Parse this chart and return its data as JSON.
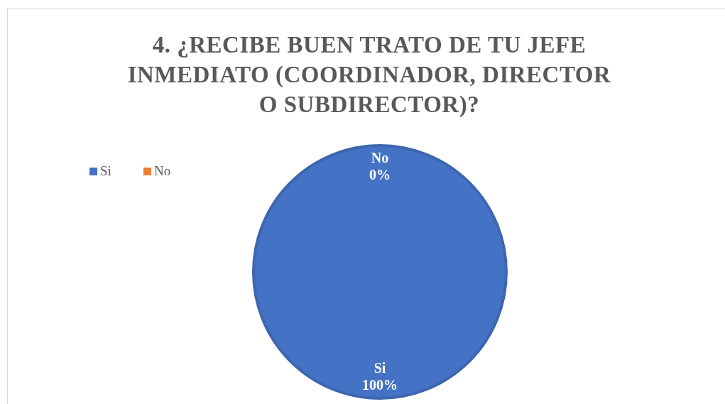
{
  "chart_data": {
    "type": "pie",
    "title": "4. ¿RECIBE BUEN TRATO DE TU JEFE INMEDIATO (COORDINADOR, DIRECTOR O SUBDIRECTOR)?",
    "categories": [
      "Si",
      "No"
    ],
    "values": [
      100,
      0
    ],
    "colors": [
      "#4472c4",
      "#ed7d31"
    ],
    "value_labels": [
      "100%",
      "0%"
    ],
    "legend": "left"
  }
}
